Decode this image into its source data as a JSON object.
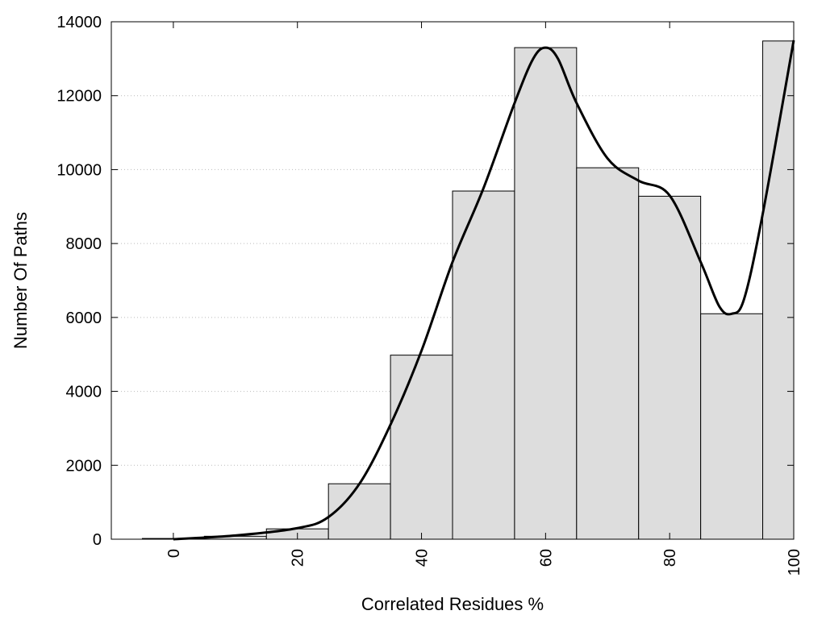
{
  "chart_data": {
    "type": "bar",
    "title": "",
    "xlabel": "Correlated Residues %",
    "ylabel": "Number Of Paths",
    "xlim": [
      -10,
      100
    ],
    "ylim": [
      0,
      14000
    ],
    "x_ticks": [
      0,
      20,
      40,
      60,
      80,
      100
    ],
    "y_ticks": [
      0,
      2000,
      4000,
      6000,
      8000,
      10000,
      12000,
      14000
    ],
    "grid": "horizontal dotted",
    "bars": {
      "bin_width": 10,
      "centers": [
        0,
        10,
        20,
        30,
        40,
        50,
        60,
        70,
        80,
        90,
        100
      ],
      "values": [
        20,
        80,
        280,
        1500,
        4980,
        9420,
        13300,
        10050,
        9280,
        6100,
        13480
      ],
      "fill": "#dddddd",
      "stroke": "#000000"
    },
    "smooth_curve": {
      "x": [
        0,
        10,
        20,
        25,
        30,
        35,
        40,
        45,
        50,
        55,
        58,
        60,
        62,
        65,
        70,
        75,
        80,
        85,
        88,
        90,
        92,
        95,
        100
      ],
      "y": [
        0,
        100,
        300,
        600,
        1500,
        3100,
        5100,
        7500,
        9500,
        11800,
        13000,
        13300,
        13000,
        11800,
        10300,
        9700,
        9300,
        7500,
        6300,
        6100,
        6500,
        8800,
        13500
      ],
      "color": "#000000"
    }
  }
}
